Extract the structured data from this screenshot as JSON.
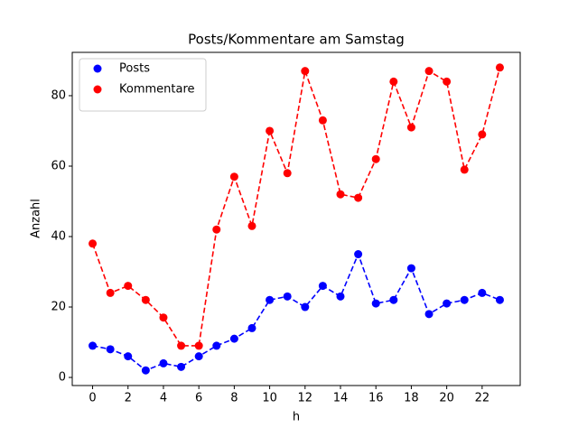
{
  "chart_data": {
    "type": "line",
    "title": "Posts/Kommentare am Samstag",
    "x_label": "h",
    "y_label": "Anzahl",
    "x": [
      0,
      1,
      2,
      3,
      4,
      5,
      6,
      7,
      8,
      9,
      10,
      11,
      12,
      13,
      14,
      15,
      16,
      17,
      18,
      19,
      20,
      21,
      22,
      23
    ],
    "series": [
      {
        "name": "Posts",
        "color": "#0000ff",
        "values": [
          9,
          8,
          6,
          2,
          4,
          3,
          6,
          9,
          11,
          14,
          22,
          23,
          20,
          26,
          23,
          35,
          21,
          22,
          31,
          18,
          21,
          22,
          24,
          22
        ]
      },
      {
        "name": "Kommentare",
        "color": "#ff0000",
        "values": [
          38,
          24,
          26,
          22,
          17,
          9,
          9,
          42,
          57,
          43,
          70,
          58,
          87,
          73,
          52,
          51,
          62,
          84,
          71,
          87,
          84,
          59,
          69,
          88
        ]
      }
    ],
    "xlim": [
      -1.15,
      24.15
    ],
    "ylim": [
      -2.3,
      92.3
    ],
    "xticks": [
      0,
      2,
      4,
      6,
      8,
      10,
      12,
      14,
      16,
      18,
      20,
      22
    ],
    "yticks": [
      0,
      20,
      40,
      60,
      80
    ],
    "legend": "upper left"
  }
}
